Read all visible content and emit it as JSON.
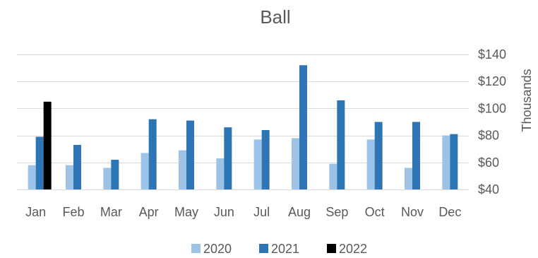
{
  "chart_data": {
    "type": "bar",
    "title": "Ball",
    "xlabel": "",
    "ylabel": "Thousands",
    "y_axis_side": "right",
    "ylim": [
      40,
      140
    ],
    "yticks": [
      40,
      60,
      80,
      100,
      120,
      140
    ],
    "ytick_labels": [
      "$40",
      "$60",
      "$80",
      "$100",
      "$120",
      "$140"
    ],
    "categories": [
      "Jan",
      "Feb",
      "Mar",
      "Apr",
      "May",
      "Jun",
      "Jul",
      "Aug",
      "Sep",
      "Oct",
      "Nov",
      "Dec"
    ],
    "series": [
      {
        "name": "2020",
        "color": "#9dc3e6",
        "values": [
          58,
          58,
          56,
          67,
          69,
          63,
          77,
          78,
          59,
          77,
          56,
          80
        ]
      },
      {
        "name": "2021",
        "color": "#2e75b6",
        "values": [
          79,
          73,
          62,
          92,
          91,
          86,
          84,
          132,
          106,
          90,
          90,
          81
        ]
      },
      {
        "name": "2022",
        "color": "#000000",
        "values": [
          105,
          null,
          null,
          null,
          null,
          null,
          null,
          null,
          null,
          null,
          null,
          null
        ]
      }
    ],
    "grid": true,
    "legend_position": "bottom"
  }
}
